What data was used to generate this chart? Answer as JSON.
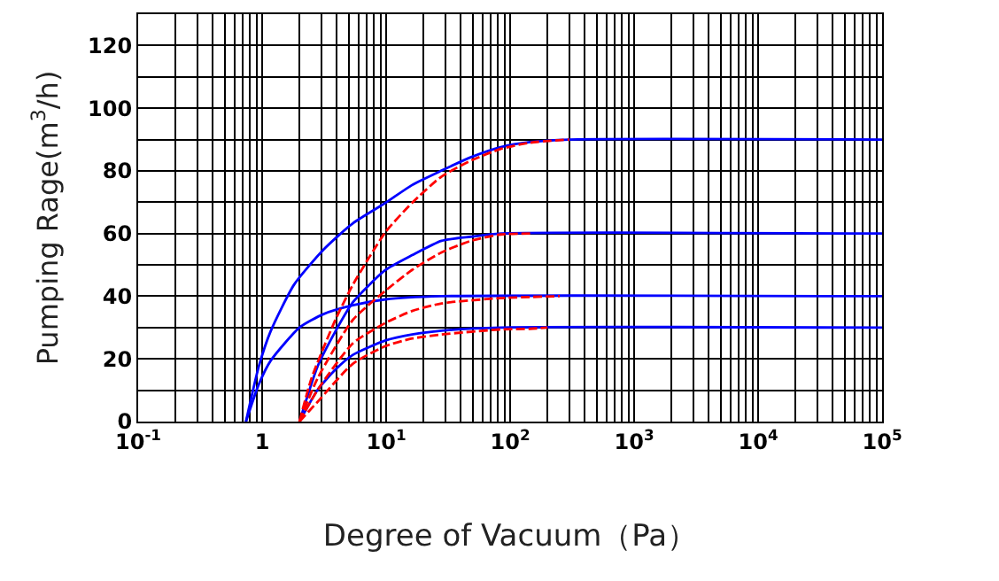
{
  "chart_data": {
    "type": "line",
    "xlabel": "Degree of Vacuum（Pa）",
    "ylabel": "Pumping Rage(m$^{3}$/h)",
    "log": "x",
    "grid": true,
    "marker": "none",
    "xlim": [
      0.1,
      100000
    ],
    "xticks": [
      {
        "value": 0.1,
        "label": "10$^{-1}$"
      },
      {
        "value": 1,
        "label": "1"
      },
      {
        "value": 10,
        "label": "10$^{1}$"
      },
      {
        "value": 100,
        "label": "10$^{2}$"
      },
      {
        "value": 1000,
        "label": "10$^{3}$"
      },
      {
        "value": 10000,
        "label": "10$^{4}$"
      },
      {
        "value": 100000,
        "label": "10$^{5}$"
      }
    ],
    "ylim": [
      0,
      130
    ],
    "yticks": [
      0,
      {
        "value": 10,
        "label": null
      },
      20,
      {
        "value": 30,
        "label": null
      },
      40,
      {
        "value": 50,
        "label": null
      },
      60,
      {
        "value": 70,
        "label": null
      },
      80,
      {
        "value": 90,
        "label": null
      },
      100,
      {
        "value": 110,
        "label": null
      },
      120,
      {
        "value": 130,
        "label": null
      }
    ],
    "series": [
      {
        "color": "#0000ff",
        "line_style": "solid",
        "x": [
          0.74,
          0.94,
          1.17,
          1.81,
          3.13,
          5.4,
          9.9,
          16.2,
          28,
          48.5,
          84,
          145,
          300,
          100000
        ],
        "values": [
          0,
          17.6,
          28.8,
          43.7,
          54.9,
          63.3,
          69.8,
          75.5,
          80.1,
          84.4,
          87.6,
          89.2,
          90,
          90
        ]
      },
      {
        "color": "#0000ff",
        "line_style": "solid",
        "x": [
          0.74,
          0.94,
          1.17,
          2,
          3.13,
          5.4,
          9.9,
          28,
          100000
        ],
        "values": [
          0,
          11.9,
          19.4,
          30,
          34.3,
          37.1,
          39,
          40,
          40
        ]
      },
      {
        "color": "#0000ff",
        "line_style": "solid",
        "x": [
          2,
          2.8,
          3.9,
          5.4,
          9.9,
          16.2,
          28,
          48.5,
          84,
          100000
        ],
        "values": [
          0,
          17.6,
          28.8,
          38.1,
          48.4,
          53.1,
          57.7,
          59,
          60,
          60
        ]
      },
      {
        "color": "#0000ff",
        "line_style": "solid",
        "x": [
          2,
          2.8,
          3.9,
          5.4,
          9.9,
          16.2,
          28,
          84,
          100000
        ],
        "values": [
          0,
          10.1,
          16.6,
          21.3,
          25.9,
          27.8,
          29,
          30,
          30
        ]
      },
      {
        "color": "#ff0000",
        "line_style": "dashed",
        "x": [
          2,
          2.5,
          3.9,
          5.4,
          9.9,
          16.2,
          28,
          48.5,
          84,
          145,
          300
        ],
        "values": [
          0,
          13.8,
          32.5,
          43.7,
          60.5,
          69.8,
          78.2,
          83.3,
          87,
          89,
          90
        ]
      },
      {
        "color": "#ff0000",
        "line_style": "dashed",
        "x": [
          2,
          2.8,
          5.4,
          9.9,
          16.2,
          28,
          48.5,
          84,
          145
        ],
        "values": [
          0,
          13.8,
          32.5,
          41.8,
          48.4,
          54,
          57.7,
          59.7,
          60
        ]
      },
      {
        "color": "#ff0000",
        "line_style": "dashed",
        "x": [
          2,
          2.8,
          5.4,
          9.9,
          16.2,
          28,
          84,
          251
        ],
        "values": [
          0,
          10.1,
          25,
          31.5,
          35.3,
          37.7,
          39.4,
          40
        ]
      },
      {
        "color": "#ff0000",
        "line_style": "dashed",
        "x": [
          2,
          2.8,
          5.4,
          9.9,
          16.2,
          28,
          84,
          145,
          200
        ],
        "values": [
          0,
          6.3,
          18.5,
          24.1,
          26.5,
          27.8,
          29.4,
          29.6,
          30
        ]
      }
    ]
  }
}
